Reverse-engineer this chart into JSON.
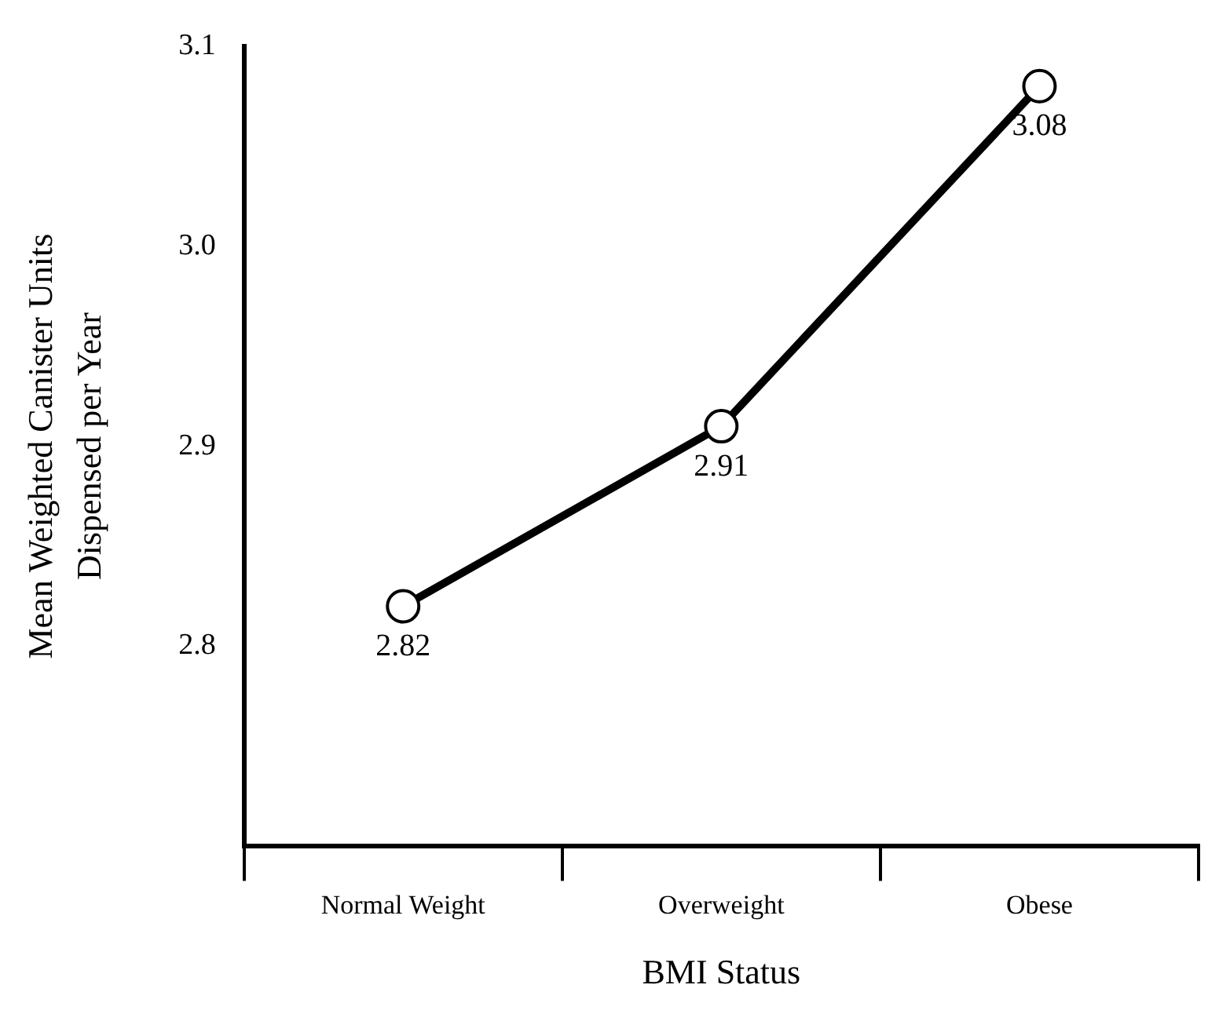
{
  "chart_data": {
    "type": "line",
    "xlabel": "BMI Status",
    "ylabel": "Mean Weighted Canister Units Dispensed per Year",
    "categories": [
      "Normal Weight",
      "Overweight",
      "Obese"
    ],
    "series": [
      {
        "color": "#000000",
        "values": [
          2.82,
          2.91,
          3.08
        ]
      }
    ],
    "ylim": [
      2.7,
      3.1
    ],
    "yticks": [
      2.8,
      2.9,
      {
        "value": 3,
        "label": "3.0"
      },
      3.1
    ],
    "grid": false,
    "legend": false,
    "marker": "circle",
    "line_style": "solid",
    "data_labels": true
  }
}
